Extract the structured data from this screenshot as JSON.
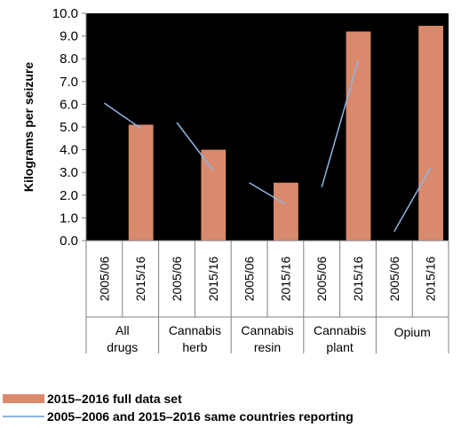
{
  "chart_data": {
    "type": "bar",
    "ylabel": "Kilograms per seizure",
    "ylim": [
      0,
      10
    ],
    "yticks": [
      "0.0",
      "1.0",
      "2.0",
      "3.0",
      "4.0",
      "5.0",
      "6.0",
      "7.0",
      "8.0",
      "9.0",
      "10.0"
    ],
    "groups": [
      {
        "name": "All drugs",
        "years": [
          "2005/06",
          "2015/16"
        ]
      },
      {
        "name": "Cannabis herb",
        "years": [
          "2005/06",
          "2015/16"
        ]
      },
      {
        "name": "Cannabis resin",
        "years": [
          "2005/06",
          "2015/16"
        ]
      },
      {
        "name": "Cannabis plant",
        "years": [
          "2005/06",
          "2015/16"
        ]
      },
      {
        "name": "Opium",
        "years": [
          "2005/06",
          "2015/16"
        ]
      }
    ],
    "series": [
      {
        "name": "2015–2016 full data set",
        "kind": "bar",
        "color": "#d98a6c",
        "values": [
          5.1,
          4.0,
          2.55,
          9.2,
          9.45
        ]
      },
      {
        "name": "2005–2006 and 2015–2016 same countries reporting",
        "kind": "line",
        "color": "#8fb4e3",
        "values": [
          [
            6.05,
            4.95
          ],
          [
            5.2,
            3.1
          ],
          [
            2.55,
            1.6
          ],
          [
            2.35,
            7.9
          ],
          [
            0.4,
            3.2
          ]
        ]
      }
    ],
    "colors": {
      "plot_background": "#000000",
      "axis": "#808080",
      "text": "#000000"
    },
    "legend_position": "bottom-left"
  }
}
